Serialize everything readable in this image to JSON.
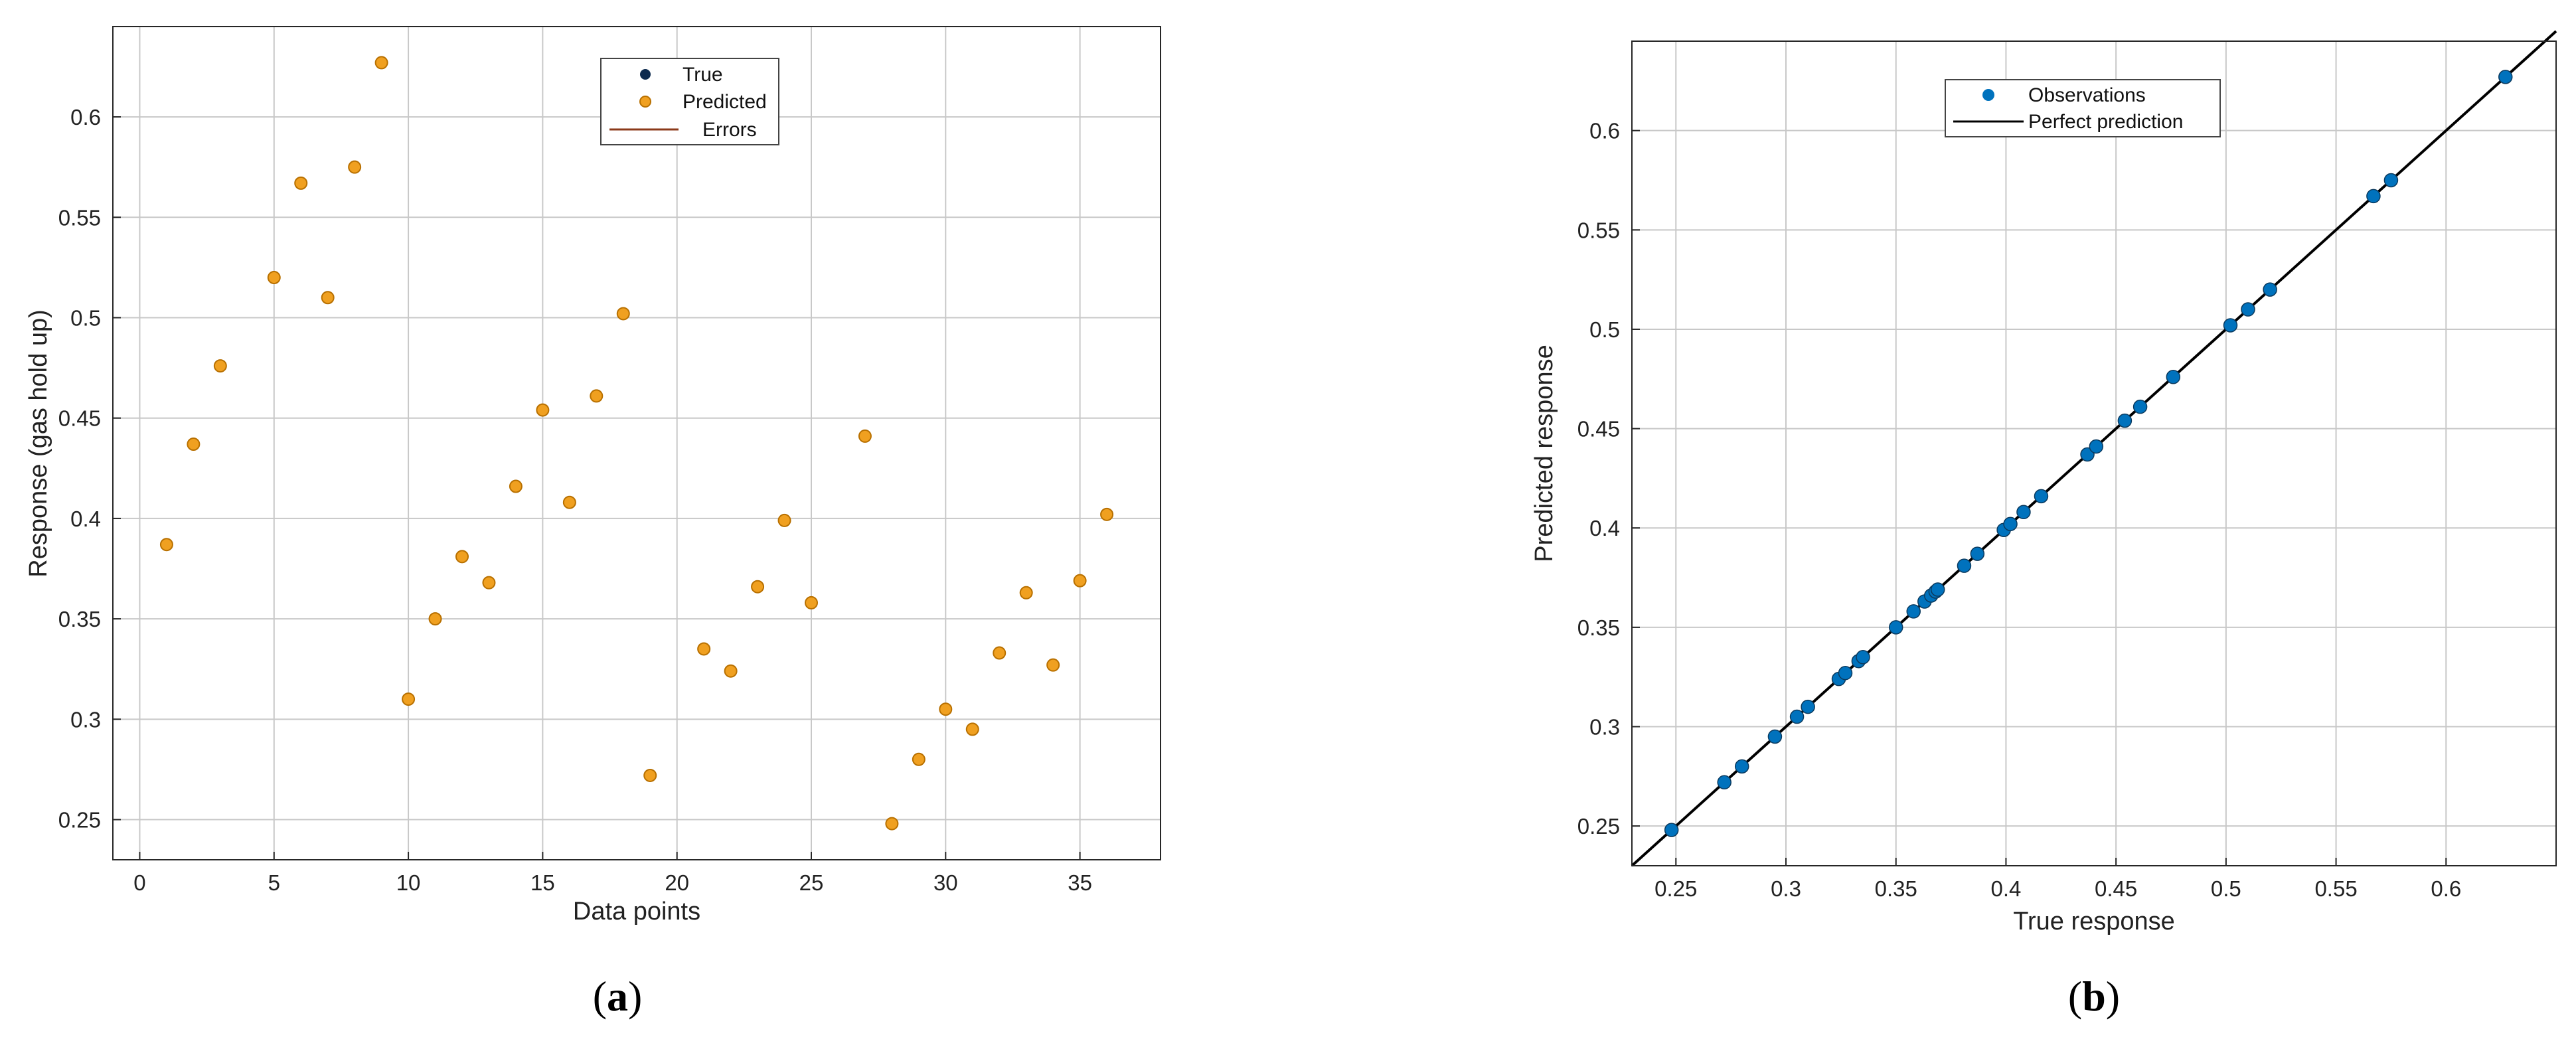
{
  "colors": {
    "true_marker": "#0d2a4e",
    "predicted_marker": "#f0a020",
    "predicted_edge": "#b87000",
    "errors_line": "#8b3a1a",
    "observations_marker": "#0072bd",
    "perfect_line": "#000000",
    "grid": "#c8c8c8"
  },
  "chart_data": [
    {
      "type": "scatter",
      "caption": "a",
      "xlabel": "Data points",
      "ylabel": "Response (gas hold up)",
      "xlim": [
        -1,
        38
      ],
      "ylim": [
        0.23,
        0.645
      ],
      "xticks": [
        0,
        5,
        10,
        15,
        20,
        25,
        30,
        35
      ],
      "yticks": [
        0.25,
        0.3,
        0.35,
        0.4,
        0.45,
        0.5,
        0.55,
        0.6
      ],
      "grid": true,
      "legend_position": "top-center",
      "legend": [
        "True",
        "Predicted",
        "Errors"
      ],
      "x": [
        1,
        2,
        3,
        5,
        6,
        7,
        8,
        9,
        10,
        11,
        12,
        13,
        14,
        15,
        16,
        17,
        18,
        19,
        21,
        22,
        23,
        24,
        25,
        27,
        28,
        29,
        30,
        31,
        32,
        33,
        34,
        35,
        36
      ],
      "series": [
        {
          "name": "True",
          "values": [
            0.387,
            0.437,
            0.476,
            0.52,
            0.567,
            0.51,
            0.575,
            0.627,
            0.31,
            0.35,
            0.381,
            0.368,
            0.416,
            0.454,
            0.408,
            0.461,
            0.502,
            0.272,
            0.335,
            0.324,
            0.366,
            0.399,
            0.358,
            0.441,
            0.248,
            0.28,
            0.305,
            0.295,
            0.333,
            0.363,
            0.327,
            0.369,
            0.402
          ]
        },
        {
          "name": "Predicted",
          "values": [
            0.387,
            0.437,
            0.476,
            0.52,
            0.567,
            0.51,
            0.575,
            0.627,
            0.31,
            0.35,
            0.381,
            0.368,
            0.416,
            0.454,
            0.408,
            0.461,
            0.502,
            0.272,
            0.335,
            0.324,
            0.366,
            0.399,
            0.358,
            0.441,
            0.248,
            0.28,
            0.305,
            0.295,
            0.333,
            0.363,
            0.327,
            0.369,
            0.402
          ]
        }
      ]
    },
    {
      "type": "scatter",
      "caption": "b",
      "xlabel": "True response",
      "ylabel": "Predicted response",
      "xlim": [
        0.23,
        0.65
      ],
      "ylim": [
        0.23,
        0.645
      ],
      "xticks": [
        0.25,
        0.3,
        0.35,
        0.4,
        0.45,
        0.5,
        0.55,
        0.6
      ],
      "yticks": [
        0.25,
        0.3,
        0.35,
        0.4,
        0.45,
        0.5,
        0.55,
        0.6
      ],
      "grid": true,
      "legend_position": "top-center",
      "legend": [
        "Observations",
        "Perfect prediction"
      ],
      "series": [
        {
          "name": "Observations",
          "x": [
            0.248,
            0.272,
            0.28,
            0.295,
            0.305,
            0.31,
            0.324,
            0.327,
            0.333,
            0.335,
            0.35,
            0.358,
            0.363,
            0.366,
            0.368,
            0.369,
            0.381,
            0.387,
            0.399,
            0.402,
            0.408,
            0.416,
            0.437,
            0.441,
            0.454,
            0.461,
            0.476,
            0.502,
            0.51,
            0.52,
            0.567,
            0.575,
            0.627
          ],
          "y": [
            0.248,
            0.272,
            0.28,
            0.295,
            0.305,
            0.31,
            0.324,
            0.327,
            0.333,
            0.335,
            0.35,
            0.358,
            0.363,
            0.366,
            0.368,
            0.369,
            0.381,
            0.387,
            0.399,
            0.402,
            0.408,
            0.416,
            0.437,
            0.441,
            0.454,
            0.461,
            0.476,
            0.502,
            0.51,
            0.52,
            0.567,
            0.575,
            0.627
          ]
        },
        {
          "name": "Perfect prediction",
          "x": [
            0.23,
            0.65
          ],
          "y": [
            0.23,
            0.65
          ]
        }
      ]
    }
  ]
}
